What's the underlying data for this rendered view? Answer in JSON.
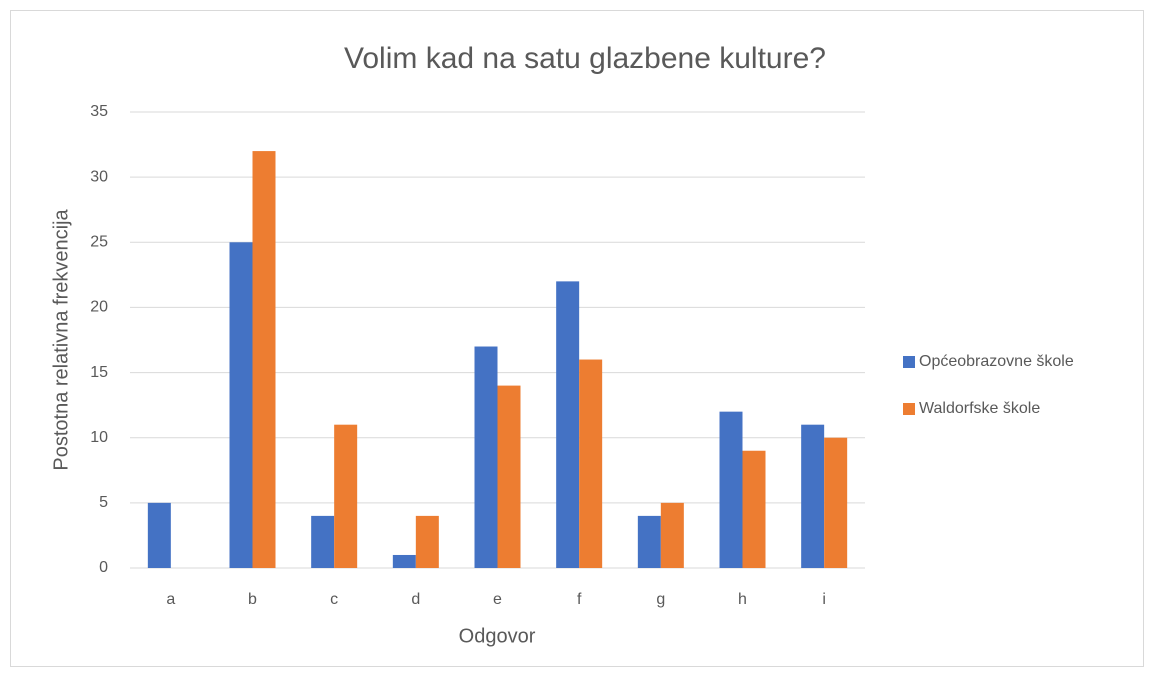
{
  "chart_data": {
    "type": "bar",
    "title": "Volim kad na satu glazbene kulture?",
    "x_label": "Odgovor",
    "y_label": "Postotna relativna frekvencija",
    "categories": [
      "a",
      "b",
      "c",
      "d",
      "e",
      "f",
      "g",
      "h",
      "i"
    ],
    "series": [
      {
        "name": "Općeobrazovne škole",
        "color": "#4472c4",
        "values": [
          5,
          25,
          4,
          1,
          17,
          22,
          4,
          12,
          11
        ]
      },
      {
        "name": "Waldorfske škole",
        "color": "#ed7d31",
        "values": [
          0,
          32,
          11,
          4,
          14,
          16,
          5,
          9,
          10
        ]
      }
    ],
    "ylim": [
      0,
      35
    ],
    "yticks": [
      0,
      5,
      10,
      15,
      20,
      25,
      30,
      35
    ],
    "grid": true,
    "legend": "right"
  }
}
